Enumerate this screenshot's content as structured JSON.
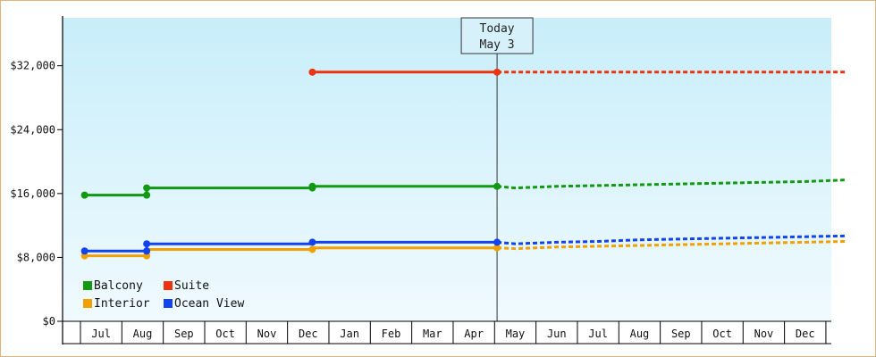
{
  "chart_data": {
    "type": "line",
    "title": "",
    "xlabel": "",
    "ylabel": "",
    "categories": [
      "Jul",
      "Aug",
      "Sep",
      "Oct",
      "Nov",
      "Dec",
      "Jan",
      "Feb",
      "Mar",
      "Apr",
      "May",
      "Jun",
      "Jul",
      "Aug",
      "Sep",
      "Oct",
      "Nov",
      "Dec"
    ],
    "x_range": [
      -0.4,
      18.0
    ],
    "ylim": [
      0,
      38000
    ],
    "y_ticks": [
      0,
      8000,
      16000,
      24000,
      32000
    ],
    "y_tick_labels": [
      "$0",
      "$8,000",
      "$16,000",
      "$24,000",
      "$32,000"
    ],
    "grid": false,
    "legend_position": "bottom-left",
    "today_marker": {
      "line1": "Today",
      "line2": "May 3",
      "x": 9.56
    },
    "series": [
      {
        "name": "Balcony",
        "color": "#119911",
        "actual": [
          [
            -0.4,
            15800
          ],
          [
            1.1,
            15800
          ],
          [
            1.1,
            16700
          ],
          [
            5.1,
            16700
          ],
          [
            5.1,
            16900
          ],
          [
            9.56,
            16900
          ]
        ],
        "markers": [
          [
            -0.4,
            15800
          ],
          [
            1.1,
            15800
          ],
          [
            1.1,
            16700
          ],
          [
            5.1,
            16700
          ],
          [
            5.1,
            16900
          ],
          [
            9.56,
            16900
          ]
        ],
        "forecast": [
          [
            9.56,
            16900
          ],
          [
            10.0,
            16700
          ],
          [
            11.0,
            16900
          ],
          [
            12.0,
            17000
          ],
          [
            13.0,
            17100
          ],
          [
            14.0,
            17200
          ],
          [
            15.0,
            17300
          ],
          [
            16.0,
            17400
          ],
          [
            17.0,
            17500
          ],
          [
            18.0,
            17700
          ]
        ]
      },
      {
        "name": "Suite",
        "color": "#ee3311",
        "actual": [
          [
            5.1,
            31200
          ],
          [
            9.56,
            31200
          ]
        ],
        "markers": [
          [
            5.1,
            31200
          ],
          [
            9.56,
            31200
          ]
        ],
        "forecast": [
          [
            9.56,
            31200
          ],
          [
            18.0,
            31200
          ]
        ]
      },
      {
        "name": "Interior",
        "color": "#f0a000",
        "actual": [
          [
            -0.4,
            8200
          ],
          [
            1.1,
            8200
          ],
          [
            1.1,
            9000
          ],
          [
            5.1,
            9000
          ],
          [
            5.1,
            9200
          ],
          [
            9.56,
            9200
          ]
        ],
        "markers": [
          [
            -0.4,
            8200
          ],
          [
            1.1,
            8200
          ],
          [
            5.1,
            9000
          ],
          [
            9.56,
            9200
          ]
        ],
        "forecast": [
          [
            9.56,
            9200
          ],
          [
            10.0,
            9100
          ],
          [
            11.0,
            9300
          ],
          [
            12.0,
            9400
          ],
          [
            13.0,
            9500
          ],
          [
            14.0,
            9600
          ],
          [
            15.0,
            9700
          ],
          [
            16.0,
            9800
          ],
          [
            17.0,
            9900
          ],
          [
            18.0,
            10000
          ]
        ]
      },
      {
        "name": "Ocean View",
        "color": "#1144ee",
        "actual": [
          [
            -0.4,
            8800
          ],
          [
            1.1,
            8800
          ],
          [
            1.1,
            9700
          ],
          [
            5.1,
            9700
          ],
          [
            5.1,
            9900
          ],
          [
            9.56,
            9900
          ]
        ],
        "markers": [
          [
            -0.4,
            8800
          ],
          [
            1.1,
            8800
          ],
          [
            1.1,
            9700
          ],
          [
            5.1,
            9900
          ],
          [
            9.56,
            9900
          ]
        ],
        "forecast": [
          [
            9.56,
            9900
          ],
          [
            10.0,
            9700
          ],
          [
            11.0,
            9900
          ],
          [
            12.0,
            10000
          ],
          [
            13.0,
            10200
          ],
          [
            14.0,
            10300
          ],
          [
            15.0,
            10400
          ],
          [
            16.0,
            10500
          ],
          [
            17.0,
            10600
          ],
          [
            18.0,
            10700
          ]
        ]
      }
    ],
    "legend": [
      {
        "name": "Balcony",
        "color": "#119911"
      },
      {
        "name": "Suite",
        "color": "#ee3311"
      },
      {
        "name": "Interior",
        "color": "#f0a000"
      },
      {
        "name": "Ocean View",
        "color": "#1144ee"
      }
    ]
  }
}
